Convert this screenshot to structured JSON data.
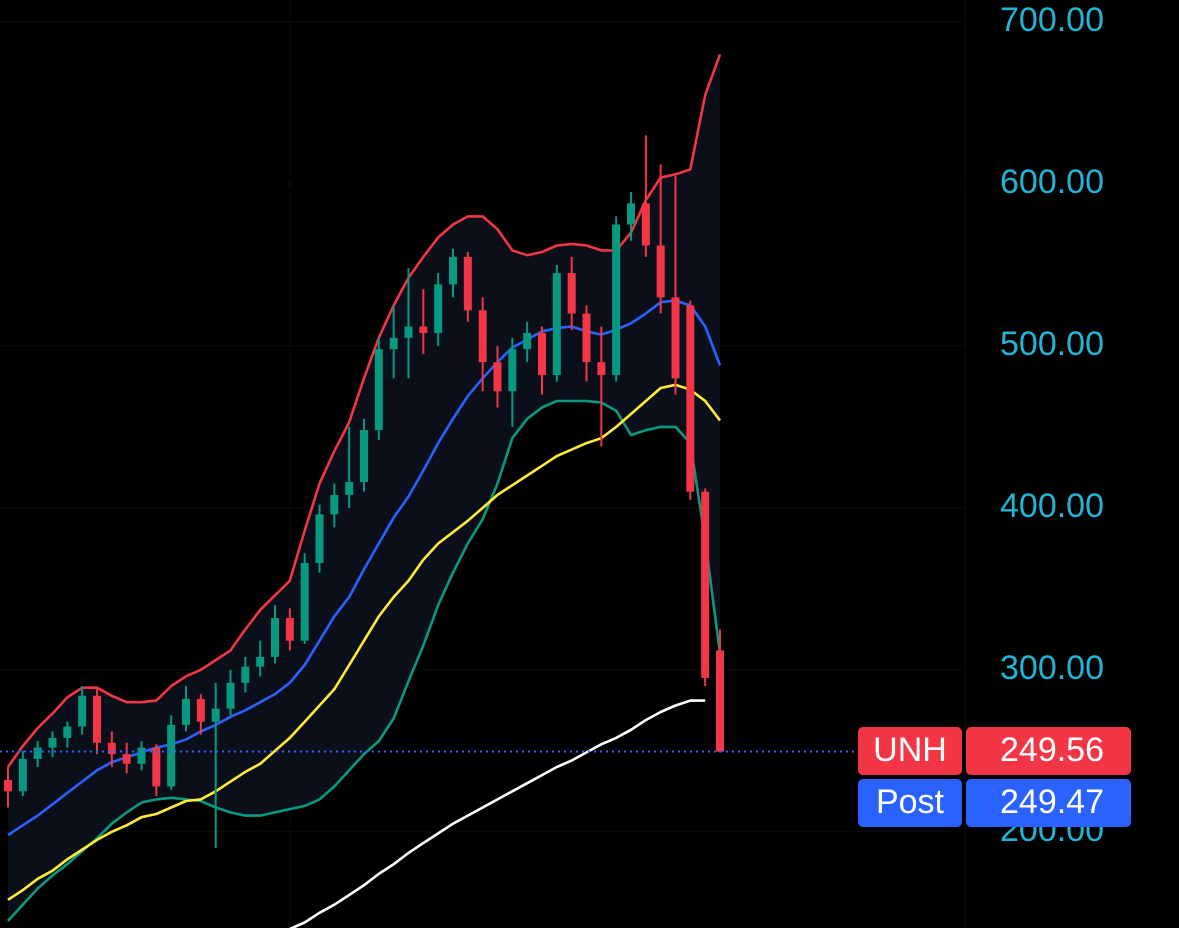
{
  "chart_data": {
    "type": "candlestick",
    "ylim": [
      140.6,
      713.6
    ],
    "yticks": [
      {
        "value": 200,
        "label": "200.00"
      },
      {
        "value": 300,
        "label": "300.00"
      },
      {
        "value": 400,
        "label": "400.00"
      },
      {
        "value": 500,
        "label": "500.00"
      },
      {
        "value": 600,
        "label": "600.00"
      },
      {
        "value": 700,
        "label": "700.00"
      }
    ],
    "grid": true,
    "up_color": "#089981",
    "down_color": "#f23645",
    "candles": {
      "open": [
        232,
        225,
        245,
        252,
        258,
        265,
        284,
        255,
        248,
        242,
        252,
        228,
        266,
        282,
        268,
        276,
        292,
        302,
        308,
        332,
        318,
        366,
        396,
        408,
        416,
        448,
        498,
        505,
        512,
        508,
        538,
        555,
        522,
        490,
        472,
        498,
        508,
        482,
        545,
        520,
        490,
        482,
        575,
        588,
        562,
        530,
        525,
        410,
        312
      ],
      "high": [
        240,
        250,
        256,
        262,
        268,
        290,
        288,
        262,
        255,
        256,
        254,
        272,
        290,
        285,
        292,
        300,
        308,
        318,
        340,
        338,
        372,
        402,
        415,
        450,
        455,
        505,
        525,
        548,
        535,
        545,
        560,
        558,
        530,
        500,
        505,
        515,
        512,
        550,
        555,
        525,
        512,
        580,
        595,
        630,
        612,
        605,
        528,
        412,
        325
      ],
      "low": [
        215,
        222,
        240,
        246,
        252,
        260,
        248,
        240,
        236,
        238,
        222,
        226,
        262,
        260,
        190,
        272,
        286,
        296,
        304,
        312,
        316,
        360,
        388,
        400,
        410,
        442,
        480,
        480,
        495,
        500,
        530,
        515,
        472,
        462,
        450,
        490,
        470,
        478,
        510,
        478,
        438,
        478,
        565,
        555,
        520,
        470,
        405,
        290,
        249
      ],
      "close": [
        225,
        245,
        252,
        258,
        265,
        284,
        255,
        248,
        242,
        252,
        228,
        266,
        282,
        268,
        276,
        292,
        302,
        308,
        332,
        318,
        366,
        396,
        408,
        416,
        448,
        498,
        505,
        512,
        508,
        538,
        555,
        522,
        490,
        472,
        498,
        508,
        482,
        545,
        520,
        490,
        482,
        575,
        588,
        562,
        530,
        480,
        410,
        295,
        249.56
      ]
    },
    "band_fill_color": "#0b0f1a",
    "lines": [
      {
        "color": "#f23645",
        "values": [
          240,
          253,
          264,
          273,
          283,
          289,
          289,
          284,
          280,
          280,
          281,
          290,
          296,
          300,
          306,
          312,
          325,
          337,
          346,
          355,
          386,
          415,
          435,
          453,
          480,
          505,
          525,
          542,
          555,
          567,
          575,
          580,
          580,
          572,
          559,
          556,
          558,
          562,
          563,
          562,
          559,
          559,
          570,
          590,
          604,
          606,
          609,
          655,
          680
        ]
      },
      {
        "color": "#2962ff",
        "values": [
          198,
          204,
          210,
          217,
          224,
          231,
          238,
          243,
          246,
          249,
          252,
          254,
          257,
          262,
          266,
          271,
          275,
          280,
          285,
          292,
          303,
          318,
          333,
          345,
          362,
          378,
          394,
          407,
          423,
          440,
          455,
          469,
          480,
          490,
          499,
          504,
          509,
          511,
          512,
          509,
          507,
          510,
          514,
          520,
          527,
          528,
          525,
          512,
          488
        ]
      },
      {
        "color": "#089981",
        "values": [
          145,
          155,
          165,
          173,
          180,
          188,
          196,
          205,
          212,
          218,
          220,
          221,
          220,
          219,
          215,
          212,
          210,
          210,
          212,
          214,
          216,
          220,
          228,
          238,
          248,
          256,
          270,
          293,
          315,
          340,
          360,
          378,
          393,
          415,
          443,
          455,
          462,
          466,
          466,
          466,
          465,
          460,
          445,
          448,
          450,
          450,
          440,
          380,
          310
        ]
      },
      {
        "color": "#ffeb3b",
        "values": [
          158,
          164,
          171,
          176,
          183,
          189,
          195,
          200,
          204,
          209,
          211,
          215,
          219,
          220,
          225,
          231,
          237,
          242,
          250,
          258,
          268,
          278,
          288,
          303,
          318,
          333,
          345,
          355,
          368,
          378,
          385,
          392,
          400,
          408,
          414,
          420,
          426,
          432,
          436,
          440,
          443,
          450,
          458,
          466,
          474,
          476,
          473,
          466,
          454
        ]
      },
      {
        "color": "#ffffff",
        "values": [
          null,
          null,
          null,
          null,
          null,
          null,
          null,
          null,
          null,
          null,
          null,
          null,
          null,
          null,
          null,
          null,
          null,
          null,
          null,
          140,
          144,
          150,
          155,
          161,
          167,
          174,
          180,
          187,
          193,
          199,
          205,
          210,
          215,
          220,
          225,
          230,
          235,
          240,
          244,
          249,
          254,
          258,
          263,
          269,
          274,
          278,
          281,
          281,
          null
        ]
      }
    ],
    "price_labels": [
      {
        "label": "UNH",
        "value": 249.56,
        "color": "#f23645"
      },
      {
        "label": "Post",
        "value": 249.47,
        "color": "#2962ff"
      }
    ]
  }
}
